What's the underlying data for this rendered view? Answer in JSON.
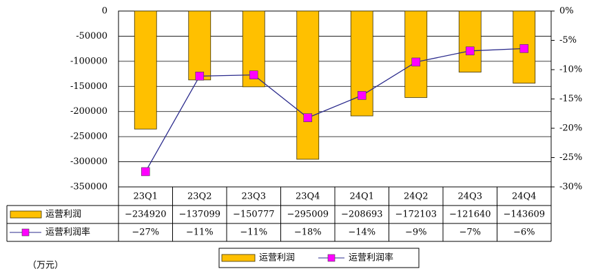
{
  "chart_data": {
    "type": "combo",
    "unit": "（万元）",
    "categories": [
      "23Q1",
      "23Q2",
      "23Q3",
      "23Q4",
      "24Q1",
      "24Q2",
      "24Q3",
      "24Q4"
    ],
    "series": [
      {
        "name": "运营利润",
        "type": "bar",
        "color": "#FFC000",
        "values": [
          -234920,
          -137099,
          -150777,
          -295009,
          -208693,
          -172103,
          -121640,
          -143609
        ],
        "value_labels": [
          "−234920",
          "−137099",
          "−150777",
          "−295009",
          "−208693",
          "−172103",
          "−121640",
          "−143609"
        ]
      },
      {
        "name": "运营利润率",
        "type": "line",
        "axis": "y2",
        "color": "#2A2A8C",
        "marker_color": "#FF00FF",
        "values": [
          -27.4,
          -11.1,
          -10.9,
          -18.2,
          -14.4,
          -8.7,
          -6.8,
          -6.4
        ],
        "value_labels": [
          "−27%",
          "−11%",
          "−11%",
          "−18%",
          "−14%",
          "−9%",
          "−7%",
          "−6%"
        ]
      }
    ],
    "ylim": [
      -350000,
      0
    ],
    "yticks": [
      0,
      -50000,
      -100000,
      -150000,
      -200000,
      -250000,
      -300000,
      -350000
    ],
    "y2lim": [
      -30,
      0
    ],
    "y2ticks": [
      {
        "value": 0,
        "label": "0%"
      },
      {
        "value": -5,
        "label": "-5%"
      },
      {
        "value": -10,
        "label": "-10%"
      },
      {
        "value": -15,
        "label": "-15%"
      },
      {
        "value": -20,
        "label": "-20%"
      },
      {
        "value": -25,
        "label": "-25%"
      },
      {
        "value": -30,
        "label": "-30%"
      }
    ],
    "grid": true
  }
}
